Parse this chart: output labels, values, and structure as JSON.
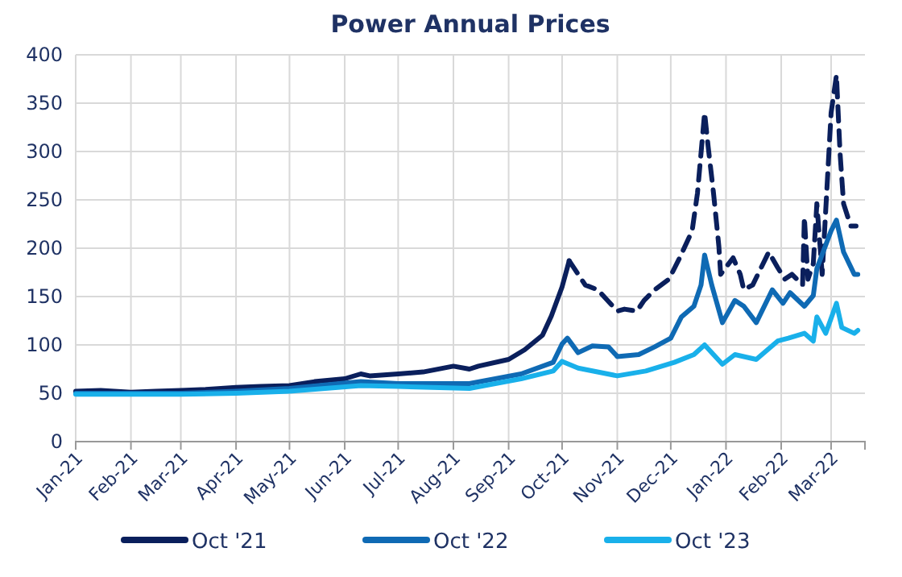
{
  "chart_data": {
    "type": "line",
    "title": "Power Annual Prices",
    "xlim": [
      "2021-01-01",
      "2022-03-20"
    ],
    "xticks": [
      {
        "value": "2021-01-01",
        "label": "Jan-21"
      },
      {
        "value": "2021-02-01",
        "label": "Feb-21"
      },
      {
        "value": "2021-03-01",
        "label": "Mar-21"
      },
      {
        "value": "2021-04-01",
        "label": "Apr-21"
      },
      {
        "value": "2021-05-01",
        "label": "May-21"
      },
      {
        "value": "2021-06-01",
        "label": "Jun-21"
      },
      {
        "value": "2021-07-01",
        "label": "Jul-21"
      },
      {
        "value": "2021-08-01",
        "label": "Aug-21"
      },
      {
        "value": "2021-09-01",
        "label": "Sep-21"
      },
      {
        "value": "2021-10-01",
        "label": "Oct-21"
      },
      {
        "value": "2021-11-01",
        "label": "Nov-21"
      },
      {
        "value": "2021-12-01",
        "label": "Dec-21"
      },
      {
        "value": "2022-01-01",
        "label": "Jan-22"
      },
      {
        "value": "2022-02-01",
        "label": "Feb-22"
      },
      {
        "value": "2022-03-01",
        "label": "Mar-22"
      }
    ],
    "ylim": [
      0,
      400
    ],
    "yticks": [
      0,
      50,
      100,
      150,
      200,
      250,
      300,
      350,
      400
    ],
    "grid": true,
    "legend": "bottom",
    "marker": "none",
    "series": [
      {
        "name": "Oct '21",
        "color": "#0a1f5c",
        "line_style": "solid",
        "x": [
          "2021-01-01",
          "2021-01-15",
          "2021-02-01",
          "2021-02-15",
          "2021-03-01",
          "2021-03-15",
          "2021-04-01",
          "2021-04-15",
          "2021-05-01",
          "2021-05-15",
          "2021-06-01",
          "2021-06-10",
          "2021-06-15",
          "2021-07-01",
          "2021-07-15",
          "2021-08-01",
          "2021-08-10",
          "2021-08-15",
          "2021-09-01",
          "2021-09-10",
          "2021-09-20",
          "2021-09-25",
          "2021-10-01",
          "2021-10-05"
        ],
        "values": [
          52,
          53,
          51,
          52,
          53,
          54,
          56,
          57,
          58,
          62,
          65,
          70,
          68,
          70,
          72,
          78,
          75,
          78,
          85,
          95,
          110,
          130,
          160,
          187
        ]
      },
      {
        "color": "#0a1f5c",
        "line_style": "dashed",
        "x": [
          "2021-10-05",
          "2021-10-14",
          "2021-10-21",
          "2021-11-01",
          "2021-11-05",
          "2021-11-12",
          "2021-11-16",
          "2021-11-22",
          "2021-11-30",
          "2021-12-06",
          "2021-12-13",
          "2021-12-16",
          "2021-12-20",
          "2021-12-22",
          "2021-12-25",
          "2021-12-28",
          "2021-12-29",
          "2022-01-05",
          "2022-01-09",
          "2022-01-11",
          "2022-01-16",
          "2022-01-25",
          "2022-01-30",
          "2022-02-03",
          "2022-02-07",
          "2022-02-13",
          "2022-02-14",
          "2022-02-16",
          "2022-02-19",
          "2022-02-21",
          "2022-02-24",
          "2022-03-01",
          "2022-03-04",
          "2022-03-06",
          "2022-03-08",
          "2022-03-12",
          "2022-03-15"
        ],
        "values": [
          187,
          162,
          157,
          135,
          137,
          135,
          146,
          157,
          168,
          190,
          218,
          257,
          340,
          305,
          257,
          202,
          173,
          190,
          173,
          157,
          162,
          196,
          180,
          168,
          173,
          162,
          232,
          168,
          184,
          246,
          173,
          340,
          379,
          299,
          246,
          223,
          223
        ]
      },
      {
        "name": "Oct '22",
        "color": "#0f6ab4",
        "line_style": "solid",
        "x": [
          "2021-01-01",
          "2021-02-01",
          "2021-03-01",
          "2021-04-01",
          "2021-05-01",
          "2021-06-10",
          "2021-07-01",
          "2021-08-10",
          "2021-09-08",
          "2021-09-26",
          "2021-10-01",
          "2021-10-04",
          "2021-10-10",
          "2021-10-18",
          "2021-10-27",
          "2021-11-01",
          "2021-11-13",
          "2021-11-22",
          "2021-12-01",
          "2021-12-07",
          "2021-12-14",
          "2021-12-18",
          "2021-12-20",
          "2021-12-24",
          "2021-12-30",
          "2022-01-06",
          "2022-01-11",
          "2022-01-18",
          "2022-01-27",
          "2022-02-02",
          "2022-02-06",
          "2022-02-14",
          "2022-02-19",
          "2022-02-21",
          "2022-03-01",
          "2022-03-04",
          "2022-03-08",
          "2022-03-14",
          "2022-03-16"
        ],
        "values": [
          50,
          50,
          50,
          52,
          55,
          62,
          60,
          60,
          70,
          82,
          101,
          107,
          92,
          99,
          98,
          88,
          90,
          98,
          107,
          129,
          140,
          162,
          193,
          162,
          123,
          146,
          140,
          123,
          157,
          143,
          154,
          140,
          151,
          179,
          218,
          229,
          196,
          173,
          173
        ]
      },
      {
        "name": "Oct '23",
        "color": "#19b0ea",
        "line_style": "solid",
        "x": [
          "2021-01-01",
          "2021-02-01",
          "2021-03-01",
          "2021-04-01",
          "2021-05-01",
          "2021-06-10",
          "2021-07-01",
          "2021-08-10",
          "2021-09-08",
          "2021-09-26",
          "2021-10-01",
          "2021-10-10",
          "2021-11-01",
          "2021-11-17",
          "2021-12-03",
          "2021-12-14",
          "2021-12-20",
          "2021-12-30",
          "2022-01-06",
          "2022-01-18",
          "2022-01-30",
          "2022-02-05",
          "2022-02-14",
          "2022-02-19",
          "2022-02-21",
          "2022-02-26",
          "2022-03-04",
          "2022-03-07",
          "2022-03-14",
          "2022-03-16"
        ],
        "values": [
          49,
          49,
          49,
          50,
          52,
          58,
          57,
          55,
          65,
          73,
          83,
          76,
          68,
          73,
          82,
          90,
          100,
          80,
          90,
          85,
          104,
          107,
          112,
          104,
          129,
          112,
          143,
          118,
          112,
          115
        ]
      }
    ]
  }
}
